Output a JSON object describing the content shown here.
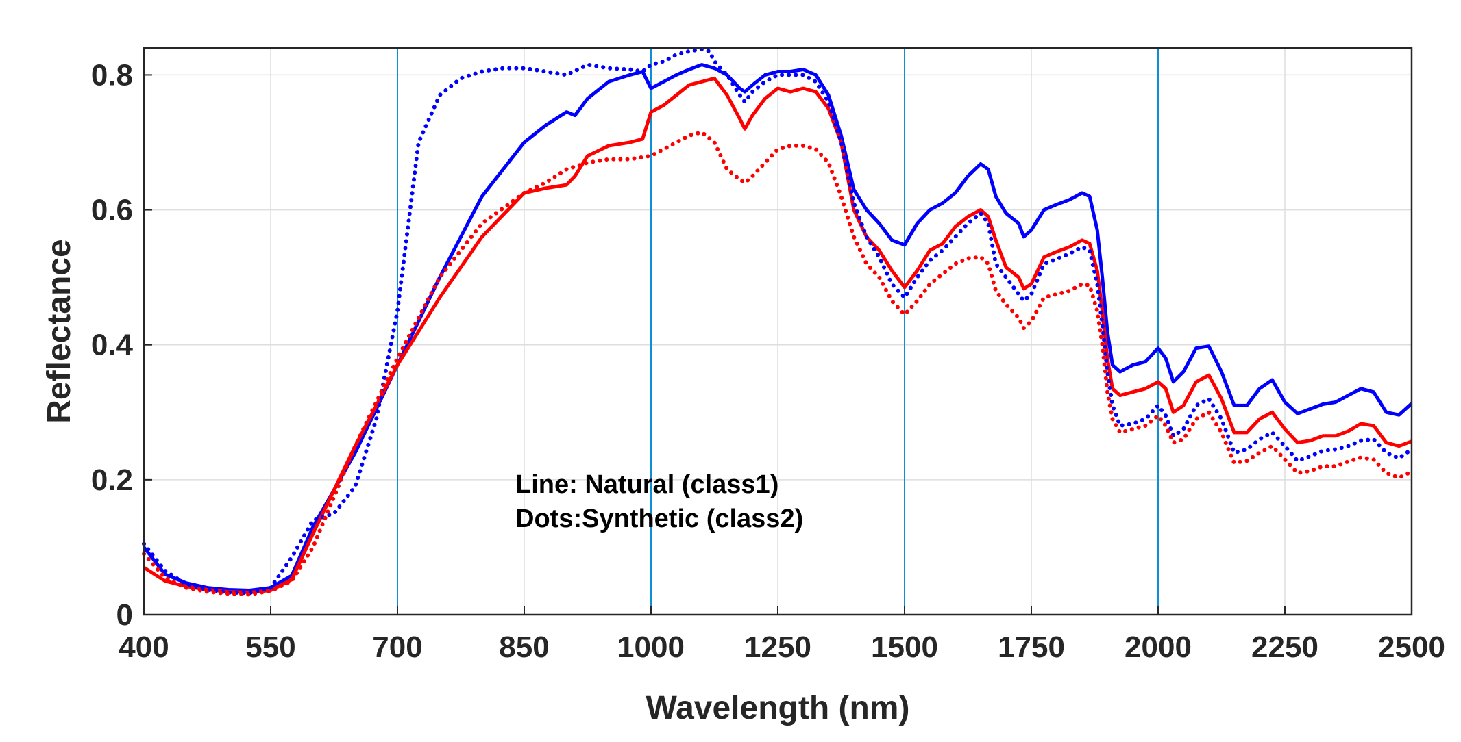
{
  "chart_data": {
    "type": "line",
    "title": "",
    "xlabel": "Wavelength (nm)",
    "ylabel": "Reflectance",
    "xlim": [
      400,
      2500
    ],
    "ylim": [
      0,
      0.84
    ],
    "xscale": "piecewise-linear",
    "x_ticks": [
      400,
      550,
      700,
      850,
      1000,
      1250,
      1500,
      1750,
      2000,
      2250,
      2500
    ],
    "x_tick_labels": [
      "400",
      "550",
      "700",
      "850",
      "1000",
      "1250",
      "1500",
      "1750",
      "2000",
      "2250",
      "2500"
    ],
    "y_ticks": [
      0,
      0.2,
      0.4,
      0.6,
      0.8
    ],
    "y_tick_labels": [
      "0",
      "0.2",
      "0.4",
      "0.6",
      "0.8"
    ],
    "vertical_lines": [
      700,
      1000,
      1500,
      2000
    ],
    "grid": true,
    "annotations": [
      "Line: Natural (class1)",
      "Dots:Synthetic (class2)"
    ],
    "series": [
      {
        "color": "#0000ff",
        "style": "solid",
        "x": [
          400,
          425,
          450,
          475,
          500,
          525,
          550,
          575,
          600,
          650,
          700,
          750,
          800,
          850,
          875,
          900,
          910,
          925,
          950,
          975,
          990,
          1000,
          1025,
          1050,
          1075,
          1100,
          1125,
          1150,
          1175,
          1185,
          1200,
          1225,
          1250,
          1275,
          1300,
          1325,
          1350,
          1375,
          1400,
          1425,
          1450,
          1475,
          1500,
          1525,
          1550,
          1575,
          1600,
          1625,
          1650,
          1665,
          1680,
          1700,
          1725,
          1735,
          1750,
          1775,
          1800,
          1825,
          1850,
          1865,
          1880,
          1890,
          1900,
          1910,
          1925,
          1950,
          1975,
          2000,
          2015,
          2030,
          2050,
          2075,
          2100,
          2125,
          2150,
          2175,
          2200,
          2225,
          2250,
          2275,
          2300,
          2325,
          2350,
          2375,
          2400,
          2425,
          2450,
          2475,
          2500
        ],
        "y": [
          0.1,
          0.06,
          0.047,
          0.04,
          0.037,
          0.036,
          0.04,
          0.058,
          0.13,
          0.24,
          0.37,
          0.5,
          0.62,
          0.7,
          0.725,
          0.745,
          0.74,
          0.765,
          0.79,
          0.8,
          0.805,
          0.78,
          0.79,
          0.8,
          0.808,
          0.815,
          0.81,
          0.8,
          0.78,
          0.775,
          0.785,
          0.8,
          0.805,
          0.805,
          0.808,
          0.8,
          0.77,
          0.71,
          0.63,
          0.6,
          0.58,
          0.555,
          0.548,
          0.58,
          0.6,
          0.61,
          0.625,
          0.65,
          0.668,
          0.66,
          0.62,
          0.595,
          0.58,
          0.56,
          0.57,
          0.6,
          0.608,
          0.615,
          0.625,
          0.62,
          0.57,
          0.5,
          0.42,
          0.37,
          0.36,
          0.37,
          0.375,
          0.395,
          0.38,
          0.345,
          0.36,
          0.395,
          0.398,
          0.36,
          0.31,
          0.31,
          0.335,
          0.348,
          0.315,
          0.298,
          0.305,
          0.312,
          0.315,
          0.325,
          0.335,
          0.33,
          0.3,
          0.296,
          0.313
        ]
      },
      {
        "color": "#ff0000",
        "style": "solid",
        "x": [
          400,
          425,
          450,
          475,
          500,
          525,
          550,
          575,
          600,
          650,
          700,
          750,
          800,
          850,
          875,
          900,
          910,
          925,
          950,
          975,
          990,
          1000,
          1025,
          1050,
          1075,
          1100,
          1125,
          1150,
          1175,
          1185,
          1200,
          1225,
          1250,
          1275,
          1300,
          1325,
          1350,
          1375,
          1400,
          1425,
          1450,
          1475,
          1500,
          1525,
          1550,
          1575,
          1600,
          1625,
          1650,
          1665,
          1680,
          1700,
          1725,
          1735,
          1750,
          1775,
          1800,
          1825,
          1850,
          1865,
          1880,
          1890,
          1900,
          1910,
          1925,
          1950,
          1975,
          2000,
          2015,
          2030,
          2050,
          2075,
          2100,
          2125,
          2150,
          2175,
          2200,
          2225,
          2250,
          2275,
          2300,
          2325,
          2350,
          2375,
          2400,
          2425,
          2450,
          2475,
          2500
        ],
        "y": [
          0.07,
          0.05,
          0.042,
          0.037,
          0.034,
          0.033,
          0.036,
          0.052,
          0.12,
          0.25,
          0.37,
          0.47,
          0.56,
          0.625,
          0.632,
          0.637,
          0.65,
          0.68,
          0.695,
          0.7,
          0.705,
          0.745,
          0.755,
          0.77,
          0.785,
          0.79,
          0.795,
          0.77,
          0.735,
          0.72,
          0.74,
          0.765,
          0.78,
          0.775,
          0.78,
          0.775,
          0.75,
          0.7,
          0.6,
          0.56,
          0.54,
          0.51,
          0.485,
          0.51,
          0.54,
          0.55,
          0.575,
          0.59,
          0.6,
          0.59,
          0.555,
          0.515,
          0.5,
          0.483,
          0.49,
          0.53,
          0.538,
          0.545,
          0.555,
          0.55,
          0.51,
          0.45,
          0.38,
          0.335,
          0.325,
          0.33,
          0.335,
          0.345,
          0.335,
          0.3,
          0.31,
          0.345,
          0.355,
          0.32,
          0.27,
          0.27,
          0.29,
          0.3,
          0.275,
          0.255,
          0.258,
          0.265,
          0.265,
          0.272,
          0.283,
          0.28,
          0.255,
          0.25,
          0.257
        ]
      },
      {
        "color": "#0000ff",
        "style": "dotted",
        "x": [
          400,
          425,
          450,
          475,
          500,
          525,
          550,
          575,
          600,
          625,
          650,
          675,
          700,
          725,
          750,
          775,
          800,
          825,
          850,
          875,
          900,
          925,
          950,
          975,
          990,
          1000,
          1025,
          1050,
          1075,
          1100,
          1115,
          1125,
          1150,
          1175,
          1185,
          1200,
          1225,
          1250,
          1275,
          1300,
          1325,
          1350,
          1375,
          1400,
          1425,
          1450,
          1475,
          1500,
          1525,
          1550,
          1575,
          1600,
          1625,
          1650,
          1665,
          1680,
          1700,
          1725,
          1735,
          1750,
          1775,
          1800,
          1825,
          1850,
          1865,
          1880,
          1890,
          1900,
          1910,
          1925,
          1950,
          1975,
          2000,
          2015,
          2030,
          2050,
          2075,
          2100,
          2125,
          2150,
          2175,
          2200,
          2225,
          2250,
          2275,
          2300,
          2325,
          2350,
          2375,
          2400,
          2425,
          2450,
          2475,
          2500
        ],
        "y": [
          0.105,
          0.065,
          0.045,
          0.037,
          0.033,
          0.032,
          0.04,
          0.085,
          0.14,
          0.15,
          0.19,
          0.29,
          0.45,
          0.7,
          0.77,
          0.795,
          0.805,
          0.81,
          0.81,
          0.805,
          0.8,
          0.815,
          0.81,
          0.808,
          0.805,
          0.815,
          0.82,
          0.83,
          0.835,
          0.838,
          0.835,
          0.82,
          0.8,
          0.77,
          0.76,
          0.775,
          0.79,
          0.8,
          0.8,
          0.8,
          0.79,
          0.76,
          0.7,
          0.61,
          0.56,
          0.53,
          0.49,
          0.47,
          0.5,
          0.525,
          0.54,
          0.56,
          0.58,
          0.595,
          0.58,
          0.52,
          0.5,
          0.475,
          0.465,
          0.475,
          0.52,
          0.527,
          0.535,
          0.545,
          0.54,
          0.49,
          0.43,
          0.36,
          0.31,
          0.28,
          0.283,
          0.29,
          0.31,
          0.295,
          0.265,
          0.275,
          0.31,
          0.32,
          0.29,
          0.24,
          0.245,
          0.26,
          0.27,
          0.25,
          0.228,
          0.235,
          0.243,
          0.245,
          0.25,
          0.258,
          0.26,
          0.24,
          0.232,
          0.245
        ]
      },
      {
        "color": "#ff0000",
        "style": "dotted",
        "x": [
          400,
          425,
          450,
          475,
          500,
          525,
          550,
          575,
          600,
          650,
          700,
          750,
          800,
          850,
          875,
          900,
          925,
          950,
          975,
          1000,
          1025,
          1050,
          1075,
          1100,
          1125,
          1150,
          1175,
          1185,
          1200,
          1225,
          1250,
          1275,
          1300,
          1325,
          1350,
          1375,
          1400,
          1425,
          1450,
          1475,
          1500,
          1525,
          1550,
          1575,
          1600,
          1625,
          1650,
          1665,
          1680,
          1700,
          1725,
          1735,
          1750,
          1775,
          1800,
          1825,
          1850,
          1865,
          1880,
          1890,
          1900,
          1910,
          1925,
          1950,
          1975,
          2000,
          2015,
          2030,
          2050,
          2075,
          2100,
          2125,
          2150,
          2175,
          2200,
          2225,
          2250,
          2275,
          2300,
          2325,
          2350,
          2375,
          2400,
          2425,
          2450,
          2475,
          2500
        ],
        "y": [
          0.09,
          0.055,
          0.04,
          0.034,
          0.031,
          0.03,
          0.035,
          0.05,
          0.1,
          0.25,
          0.38,
          0.5,
          0.58,
          0.625,
          0.64,
          0.66,
          0.67,
          0.675,
          0.675,
          0.68,
          0.69,
          0.7,
          0.71,
          0.715,
          0.7,
          0.66,
          0.645,
          0.64,
          0.65,
          0.67,
          0.69,
          0.695,
          0.695,
          0.69,
          0.67,
          0.62,
          0.56,
          0.52,
          0.5,
          0.465,
          0.445,
          0.465,
          0.49,
          0.505,
          0.52,
          0.528,
          0.53,
          0.52,
          0.48,
          0.46,
          0.44,
          0.425,
          0.435,
          0.47,
          0.475,
          0.48,
          0.49,
          0.488,
          0.45,
          0.4,
          0.33,
          0.29,
          0.27,
          0.275,
          0.28,
          0.295,
          0.28,
          0.255,
          0.26,
          0.29,
          0.3,
          0.27,
          0.225,
          0.228,
          0.24,
          0.25,
          0.23,
          0.21,
          0.213,
          0.22,
          0.22,
          0.227,
          0.233,
          0.23,
          0.21,
          0.203,
          0.212
        ]
      }
    ]
  }
}
